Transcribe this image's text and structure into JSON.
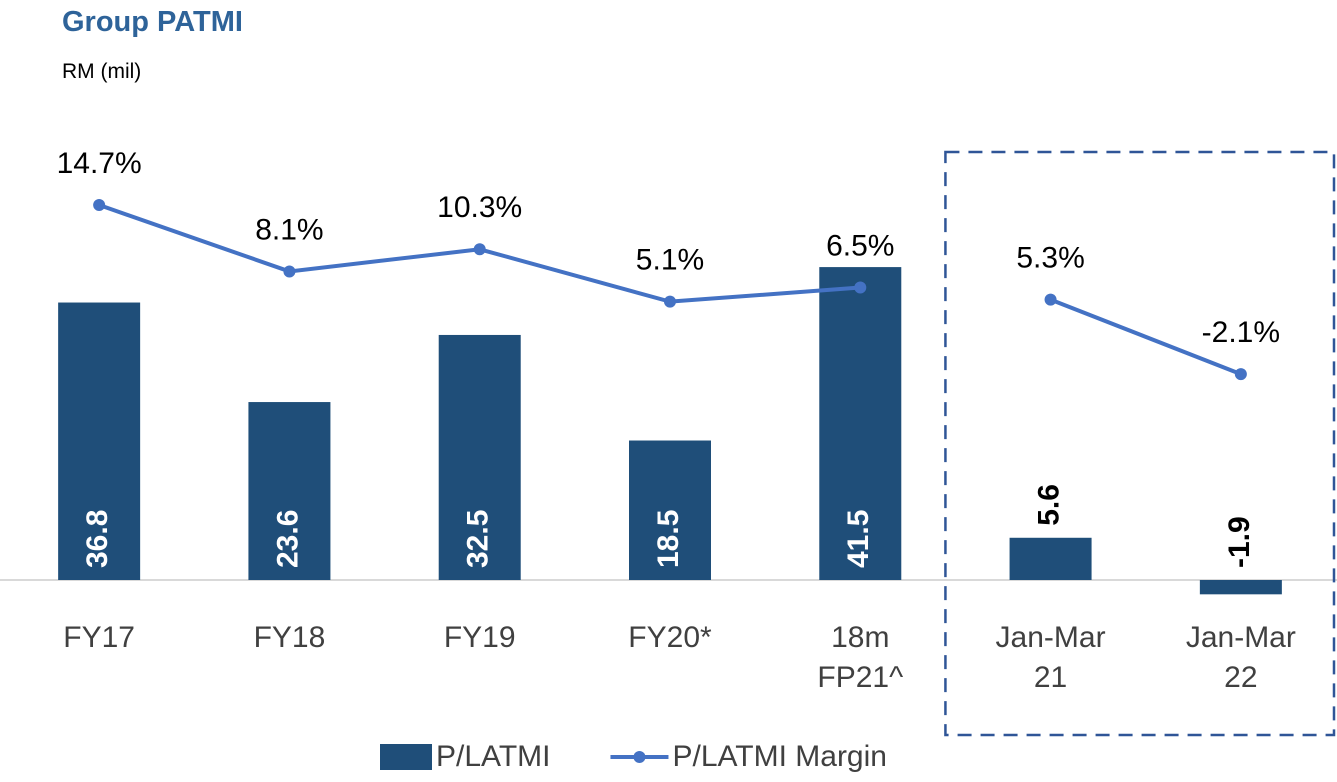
{
  "chart_data": {
    "type": "bar_line",
    "title": "Group PATMI",
    "subtitle": "RM (mil)",
    "categories": [
      "FY17",
      "FY18",
      "FY19",
      "FY20*",
      "18m FP21^",
      "Jan-Mar 21",
      "Jan-Mar 22"
    ],
    "series": [
      {
        "name": "P/LATMI",
        "type": "bar",
        "color": "#1f4e79",
        "values": [
          36.8,
          23.6,
          32.5,
          18.5,
          41.5,
          5.6,
          -1.9
        ]
      },
      {
        "name": "P/LATMI Margin",
        "type": "line",
        "axis": "y2",
        "color": "#4472c4",
        "values": [
          14.7,
          8.1,
          10.3,
          5.1,
          6.5,
          5.3,
          -2.1
        ],
        "value_labels": [
          "14.7%",
          "8.1%",
          "10.3%",
          "5.1%",
          "6.5%",
          "5.3%",
          "-2.1%"
        ]
      }
    ],
    "ylim": [
      -5,
      50
    ],
    "y2lim": [
      -26.3,
      14.9
    ],
    "highlight_start": 5,
    "legend": "bottom"
  }
}
